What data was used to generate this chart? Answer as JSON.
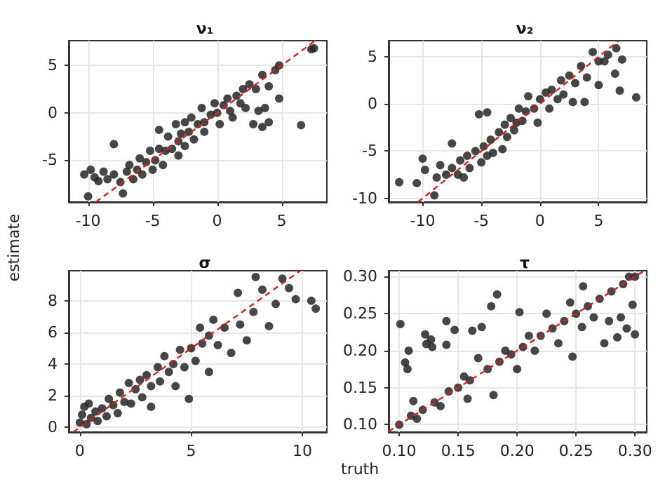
{
  "chart_data": [
    {
      "type": "scatter",
      "title": "ν₁",
      "ylabel": "estimate",
      "grid": true,
      "xlim": [
        -11.5,
        8.5
      ],
      "ylim": [
        -9.4,
        7.6
      ],
      "xticks": [
        -10,
        -5,
        0,
        5
      ],
      "yticks": [
        -5,
        0,
        5
      ],
      "series": [
        {
          "color": "#262626",
          "marker": "circle",
          "x": [
            -10.3,
            -10.0,
            -9.8,
            -9.5,
            -9.2,
            -8.8,
            -8.5,
            -8.0,
            -8.0,
            -7.5,
            -7.3,
            -7.0,
            -6.8,
            -6.5,
            -6.2,
            -6.0,
            -5.8,
            -5.5,
            -5.2,
            -5.0,
            -4.8,
            -4.5,
            -4.5,
            -4.2,
            -4.0,
            -3.8,
            -3.5,
            -3.2,
            -3.0,
            -3.0,
            -2.8,
            -2.5,
            -2.5,
            -2.2,
            -2.0,
            -1.8,
            -1.5,
            -1.2,
            -1.0,
            -1.0,
            -0.5,
            -0.2,
            0.0,
            0.2,
            0.5,
            0.8,
            1.0,
            1.2,
            1.5,
            1.8,
            2.0,
            2.2,
            2.5,
            2.8,
            3.0,
            3.2,
            3.5,
            3.5,
            3.7,
            4.0,
            4.0,
            4.5,
            4.8,
            4.8,
            6.5,
            7.3,
            7.5
          ],
          "values": [
            -6.5,
            -8.8,
            -6.0,
            -6.8,
            -7.2,
            -6.2,
            -7.0,
            -3.3,
            -6.5,
            -7.3,
            -8.5,
            -6.2,
            -5.5,
            -7.0,
            -6.0,
            -4.8,
            -6.5,
            -5.2,
            -4.0,
            -6.0,
            -5.0,
            -1.8,
            -3.8,
            -5.5,
            -4.0,
            -2.5,
            -3.8,
            -1.2,
            -3.0,
            -4.5,
            -2.2,
            -1.0,
            -3.5,
            -2.0,
            -0.5,
            -2.8,
            -1.2,
            0.5,
            -1.0,
            -2.0,
            -0.2,
            1.0,
            0.0,
            -1.2,
            0.8,
            1.5,
            0.2,
            -0.5,
            1.8,
            1.0,
            2.5,
            0.5,
            3.0,
            -1.2,
            2.5,
            0.2,
            -1.5,
            4.0,
            0.5,
            -1.0,
            2.8,
            4.5,
            1.5,
            5.0,
            -1.3,
            6.7,
            6.8
          ]
        },
        {
          "type": "line",
          "color": "#e31a1c",
          "line_style": "dashed",
          "marker": "none",
          "x": [
            -9.4,
            7.6
          ],
          "values": [
            -9.4,
            7.6
          ]
        }
      ]
    },
    {
      "type": "scatter",
      "title": "ν₂",
      "grid": true,
      "xlim": [
        -12.9,
        9.1
      ],
      "ylim": [
        -10.4,
        6.7
      ],
      "xticks": [
        -10,
        -5,
        0,
        5
      ],
      "yticks": [
        -10,
        -5,
        0,
        5
      ],
      "series": [
        {
          "color": "#262626",
          "marker": "circle",
          "x": [
            -12.0,
            -10.5,
            -10.0,
            -9.8,
            -9.0,
            -8.8,
            -8.5,
            -8.0,
            -7.5,
            -7.5,
            -7.0,
            -6.8,
            -6.5,
            -6.2,
            -6.0,
            -5.5,
            -5.2,
            -5.0,
            -4.8,
            -4.5,
            -4.5,
            -4.2,
            -4.0,
            -3.5,
            -3.2,
            -3.0,
            -2.8,
            -2.5,
            -2.2,
            -2.0,
            -1.8,
            -1.5,
            -1.2,
            -1.0,
            -0.5,
            -0.2,
            0.0,
            0.5,
            0.8,
            1.0,
            1.5,
            1.8,
            2.0,
            2.5,
            2.8,
            3.0,
            3.5,
            3.8,
            4.0,
            4.5,
            5.0,
            5.0,
            5.5,
            5.8,
            6.4,
            6.5,
            6.8,
            7.0,
            8.2
          ],
          "values": [
            -8.3,
            -8.4,
            -5.8,
            -7.0,
            -9.7,
            -7.8,
            -6.5,
            -7.5,
            -4.2,
            -6.8,
            -7.5,
            -6.0,
            -7.8,
            -5.5,
            -6.8,
            -5.0,
            -1.1,
            -6.2,
            -4.5,
            -0.9,
            -5.5,
            -3.8,
            -5.2,
            -3.0,
            -4.8,
            -2.2,
            -3.5,
            -1.5,
            -2.8,
            -2.0,
            -0.5,
            -1.8,
            -0.8,
            0.8,
            -0.5,
            -2.0,
            0.5,
            1.2,
            -0.5,
            1.5,
            0.5,
            2.5,
            1.0,
            3.0,
            0.2,
            2.2,
            4.0,
            0.2,
            2.8,
            5.5,
            2.0,
            4.5,
            4.5,
            5.2,
            3.2,
            5.9,
            1.4,
            4.7,
            0.7
          ]
        },
        {
          "type": "line",
          "color": "#e31a1c",
          "line_style": "dashed",
          "marker": "none",
          "x": [
            -10.4,
            6.7
          ],
          "values": [
            -10.4,
            6.7
          ]
        }
      ]
    },
    {
      "type": "scatter",
      "title": "σ",
      "grid": true,
      "xlim": [
        -0.5,
        11.1
      ],
      "ylim": [
        -0.3,
        9.9
      ],
      "xticks": [
        0,
        5,
        10
      ],
      "yticks": [
        0,
        2,
        4,
        6,
        8
      ],
      "series": [
        {
          "color": "#262626",
          "marker": "circle",
          "x": [
            0.0,
            0.1,
            0.2,
            0.3,
            0.4,
            0.5,
            0.7,
            0.8,
            1.0,
            1.2,
            1.3,
            1.5,
            1.7,
            1.8,
            2.0,
            2.2,
            2.3,
            2.5,
            2.7,
            2.8,
            3.0,
            3.2,
            3.2,
            3.5,
            3.6,
            3.8,
            4.0,
            4.2,
            4.3,
            4.5,
            4.7,
            4.9,
            5.0,
            5.2,
            5.4,
            5.5,
            5.8,
            5.8,
            6.0,
            6.2,
            6.5,
            6.8,
            7.1,
            7.2,
            7.5,
            7.8,
            7.9,
            8.2,
            8.5,
            8.8,
            9.1,
            9.4,
            9.7,
            10.4,
            10.6
          ],
          "values": [
            0.3,
            0.8,
            1.3,
            0.2,
            1.5,
            0.6,
            1.0,
            0.4,
            1.2,
            0.7,
            1.8,
            1.4,
            0.9,
            2.2,
            1.6,
            2.8,
            1.5,
            2.4,
            3.0,
            1.9,
            3.3,
            1.3,
            2.6,
            3.8,
            2.9,
            4.5,
            3.5,
            4.0,
            2.6,
            4.9,
            3.8,
            1.8,
            5.0,
            4.2,
            6.3,
            5.3,
            3.5,
            5.8,
            6.8,
            5.2,
            6.3,
            4.7,
            8.5,
            6.5,
            5.5,
            7.3,
            9.5,
            8.7,
            6.4,
            7.8,
            9.4,
            8.8,
            8.1,
            8.0,
            7.5
          ]
        },
        {
          "type": "line",
          "color": "#e31a1c",
          "line_style": "dashed",
          "marker": "none",
          "x": [
            -0.3,
            9.9
          ],
          "values": [
            -0.3,
            9.9
          ]
        }
      ]
    },
    {
      "type": "scatter",
      "title": "τ",
      "xlabel": "truth",
      "grid": true,
      "xlim": [
        0.091,
        0.31
      ],
      "ylim": [
        0.09,
        0.308
      ],
      "xticks": [
        {
          "value": 0.1,
          "label": "0.10"
        },
        {
          "value": 0.15,
          "label": "0.15"
        },
        {
          "value": 0.2,
          "label": "0.20"
        },
        {
          "value": 0.25,
          "label": "0.25"
        },
        {
          "value": 0.3,
          "label": "0.30"
        }
      ],
      "yticks": [
        {
          "value": 0.1,
          "label": "0.10"
        },
        {
          "value": 0.15,
          "label": "0.15"
        },
        {
          "value": 0.2,
          "label": "0.20"
        },
        {
          "value": 0.25,
          "label": "0.25"
        },
        {
          "value": 0.3,
          "label": "0.30"
        }
      ],
      "series": [
        {
          "color": "#262626",
          "marker": "circle",
          "x": [
            0.1,
            0.101,
            0.105,
            0.108,
            0.107,
            0.11,
            0.112,
            0.115,
            0.12,
            0.122,
            0.123,
            0.127,
            0.128,
            0.13,
            0.135,
            0.14,
            0.14,
            0.142,
            0.147,
            0.15,
            0.155,
            0.158,
            0.16,
            0.162,
            0.167,
            0.17,
            0.175,
            0.178,
            0.18,
            0.183,
            0.185,
            0.19,
            0.195,
            0.2,
            0.202,
            0.205,
            0.21,
            0.215,
            0.22,
            0.225,
            0.23,
            0.235,
            0.24,
            0.245,
            0.247,
            0.25,
            0.255,
            0.256,
            0.26,
            0.265,
            0.27,
            0.274,
            0.278,
            0.28,
            0.285,
            0.288,
            0.29,
            0.293,
            0.295,
            0.298,
            0.3,
            0.3
          ],
          "values": [
            0.1,
            0.236,
            0.184,
            0.2,
            0.175,
            0.112,
            0.132,
            0.108,
            0.12,
            0.222,
            0.209,
            0.215,
            0.205,
            0.13,
            0.125,
            0.24,
            0.208,
            0.145,
            0.228,
            0.15,
            0.165,
            0.135,
            0.16,
            0.227,
            0.19,
            0.232,
            0.175,
            0.26,
            0.14,
            0.276,
            0.185,
            0.2,
            0.195,
            0.175,
            0.252,
            0.205,
            0.22,
            0.2,
            0.22,
            0.25,
            0.23,
            0.21,
            0.24,
            0.265,
            0.192,
            0.25,
            0.232,
            0.287,
            0.26,
            0.245,
            0.27,
            0.21,
            0.24,
            0.28,
            0.218,
            0.245,
            0.29,
            0.23,
            0.3,
            0.262,
            0.3,
            0.222
          ]
        },
        {
          "type": "line",
          "color": "#e31a1c",
          "line_style": "dashed",
          "marker": "none",
          "x": [
            0.091,
            0.308
          ],
          "values": [
            0.091,
            0.308
          ]
        }
      ]
    }
  ]
}
